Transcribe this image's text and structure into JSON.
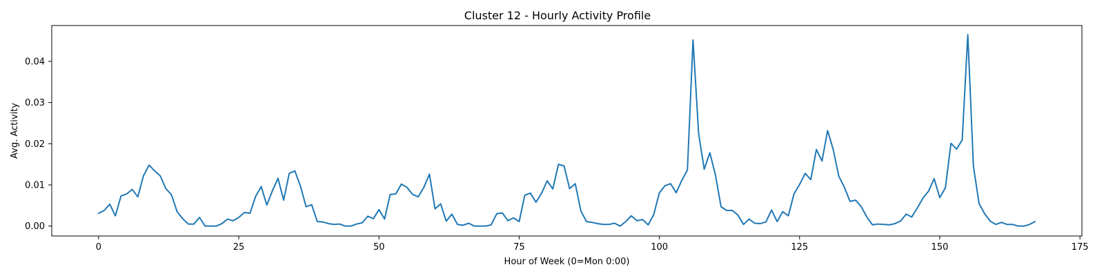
{
  "chart_data": {
    "type": "line",
    "title": "Cluster 12 - Hourly Activity Profile",
    "xlabel": "Hour of Week (0=Mon 0:00)",
    "ylabel": "Avg. Activity",
    "xlim": [
      -8.35,
      175.35
    ],
    "ylim": [
      -0.0024,
      0.0487
    ],
    "xticks": [
      0,
      25,
      50,
      75,
      100,
      125,
      150,
      175
    ],
    "xtick_labels": [
      "0",
      "25",
      "50",
      "75",
      "100",
      "125",
      "150",
      "175"
    ],
    "yticks": [
      0.0,
      0.01,
      0.02,
      0.03,
      0.04
    ],
    "ytick_labels": [
      "0.00",
      "0.01",
      "0.02",
      "0.03",
      "0.04"
    ],
    "grid": false,
    "legend": "none",
    "series": [
      {
        "color": "#1f77b4",
        "x": [
          0,
          1,
          2,
          3,
          4,
          5,
          6,
          7,
          8,
          9,
          10,
          11,
          12,
          13,
          14,
          15,
          16,
          17,
          18,
          19,
          20,
          21,
          22,
          23,
          24,
          25,
          26,
          27,
          28,
          29,
          30,
          31,
          32,
          33,
          34,
          35,
          36,
          37,
          38,
          39,
          40,
          41,
          42,
          43,
          44,
          45,
          46,
          47,
          48,
          49,
          50,
          51,
          52,
          53,
          54,
          55,
          56,
          57,
          58,
          59,
          60,
          61,
          62,
          63,
          64,
          65,
          66,
          67,
          68,
          69,
          70,
          71,
          72,
          73,
          74,
          75,
          76,
          77,
          78,
          79,
          80,
          81,
          82,
          83,
          84,
          85,
          86,
          87,
          88,
          89,
          90,
          91,
          92,
          93,
          94,
          95,
          96,
          97,
          98,
          99,
          100,
          101,
          102,
          103,
          104,
          105,
          106,
          107,
          108,
          109,
          110,
          111,
          112,
          113,
          114,
          115,
          116,
          117,
          118,
          119,
          120,
          121,
          122,
          123,
          124,
          125,
          126,
          127,
          128,
          129,
          130,
          131,
          132,
          133,
          134,
          135,
          136,
          137,
          138,
          139,
          140,
          141,
          142,
          143,
          144,
          145,
          146,
          147,
          148,
          149,
          150,
          151,
          152,
          153,
          154,
          155,
          156,
          157,
          158,
          159,
          160,
          161,
          162,
          163,
          164,
          165,
          166,
          167
        ],
        "y": [
          0.0031,
          0.0038,
          0.0053,
          0.0025,
          0.0073,
          0.0078,
          0.0089,
          0.0071,
          0.0122,
          0.0148,
          0.0134,
          0.0122,
          0.0091,
          0.0076,
          0.0035,
          0.0018,
          0.0005,
          0.0005,
          0.0021,
          0.0,
          0.0,
          0.0,
          0.0006,
          0.0017,
          0.0013,
          0.0021,
          0.0033,
          0.0031,
          0.0072,
          0.0096,
          0.0051,
          0.0086,
          0.0116,
          0.0063,
          0.0128,
          0.0134,
          0.0097,
          0.0047,
          0.0052,
          0.0011,
          0.001,
          0.0006,
          0.0004,
          0.0005,
          0.0,
          0.0,
          0.0005,
          0.0008,
          0.0024,
          0.0018,
          0.004,
          0.0017,
          0.0077,
          0.0078,
          0.0102,
          0.0094,
          0.0077,
          0.0071,
          0.0094,
          0.0126,
          0.0042,
          0.0054,
          0.0012,
          0.0029,
          0.0004,
          0.0002,
          0.0007,
          0.0,
          0.0,
          0.0,
          0.0003,
          0.003,
          0.0032,
          0.0013,
          0.002,
          0.0011,
          0.0075,
          0.008,
          0.0058,
          0.008,
          0.011,
          0.009,
          0.015,
          0.0146,
          0.0091,
          0.0103,
          0.0037,
          0.0011,
          0.0009,
          0.0006,
          0.0004,
          0.0004,
          0.0007,
          0.0,
          0.0011,
          0.0025,
          0.0013,
          0.0016,
          0.0003,
          0.0028,
          0.0081,
          0.0098,
          0.0103,
          0.0081,
          0.0111,
          0.0136,
          0.0452,
          0.0225,
          0.0138,
          0.0178,
          0.0124,
          0.0047,
          0.0038,
          0.0038,
          0.0027,
          0.0004,
          0.0017,
          0.0007,
          0.0006,
          0.001,
          0.0039,
          0.0011,
          0.0035,
          0.0025,
          0.0078,
          0.0101,
          0.0128,
          0.0113,
          0.0186,
          0.0158,
          0.0232,
          0.0186,
          0.0121,
          0.0094,
          0.006,
          0.0063,
          0.0047,
          0.0022,
          0.0003,
          0.0005,
          0.0004,
          0.0003,
          0.0006,
          0.0012,
          0.0029,
          0.0022,
          0.0044,
          0.0068,
          0.0085,
          0.0115,
          0.0069,
          0.0093,
          0.0201,
          0.0187,
          0.0209,
          0.0465,
          0.0146,
          0.0055,
          0.003,
          0.0012,
          0.0004,
          0.0009,
          0.0004,
          0.0004,
          0.0,
          0.0,
          0.0004,
          0.0011
        ]
      }
    ]
  }
}
